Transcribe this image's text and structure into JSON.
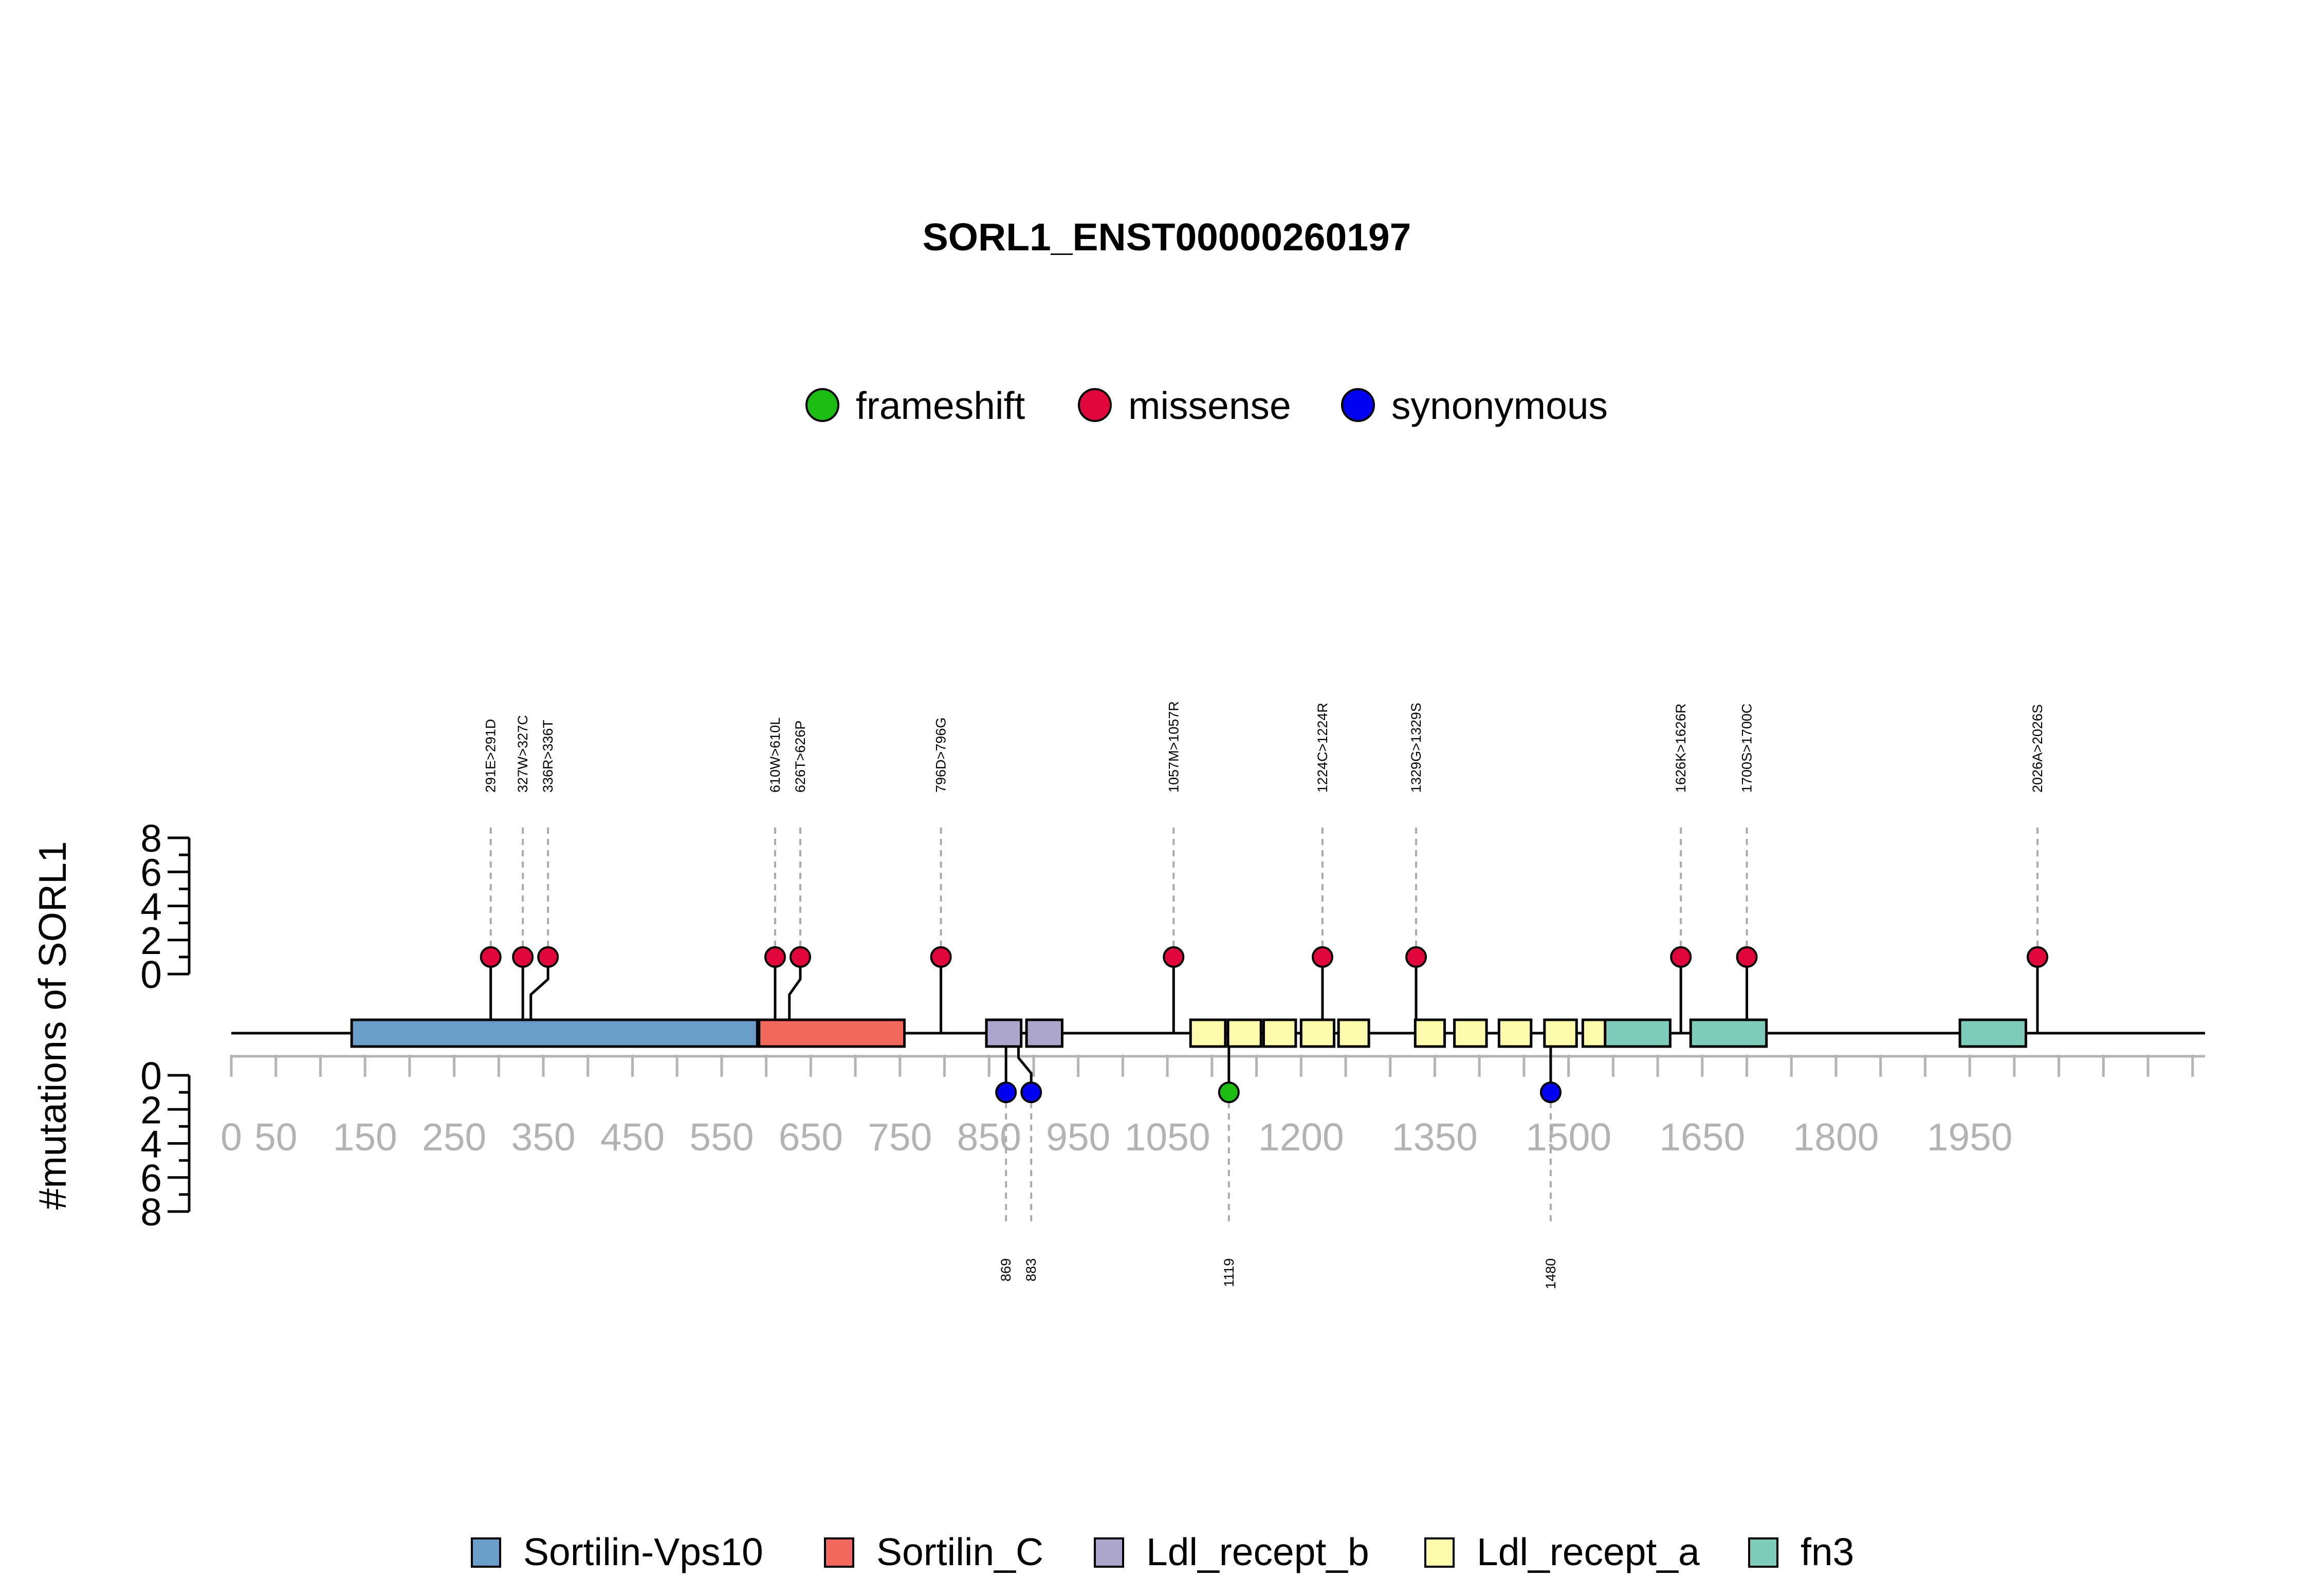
{
  "chart_data": {
    "type": "lollipop",
    "title": "SORL1_ENST00000260197",
    "ylabel": "#mutations of SORL1",
    "protein_length": 2214,
    "xticks": [
      0,
      50,
      150,
      250,
      350,
      450,
      550,
      650,
      750,
      850,
      950,
      1050,
      1200,
      1350,
      1500,
      1650,
      1800,
      1950
    ],
    "yticks_top": [
      0,
      2,
      4,
      6,
      8
    ],
    "yticks_bottom": [
      0,
      2,
      4,
      6,
      8
    ],
    "ylim": [
      0,
      8
    ],
    "legend_mutations": [
      {
        "name": "frameshift",
        "color": "#1bbd12"
      },
      {
        "name": "missense",
        "color": "#e0063c"
      },
      {
        "name": "synonymous",
        "color": "#0000f2"
      }
    ],
    "legend_domains": [
      {
        "name": "Sortilin-Vps10",
        "color": "#6a9ec9"
      },
      {
        "name": "Sortilin_C",
        "color": "#f4695e"
      },
      {
        "name": "Ldl_recept_b",
        "color": "#aca5cc"
      },
      {
        "name": "Ldl_recept_a",
        "color": "#fdfbac"
      },
      {
        "name": "fn3",
        "color": "#7ecdbb"
      }
    ],
    "domains": [
      {
        "name": "Sortilin-Vps10",
        "start": 135,
        "end": 590
      },
      {
        "name": "Sortilin_C",
        "start": 592,
        "end": 755
      },
      {
        "name": "Ldl_recept_b",
        "start": 847,
        "end": 886
      },
      {
        "name": "Ldl_recept_b",
        "start": 892,
        "end": 932
      },
      {
        "name": "Ldl_recept_a",
        "start": 1076,
        "end": 1115
      },
      {
        "name": "Ldl_recept_a",
        "start": 1118,
        "end": 1155
      },
      {
        "name": "Ldl_recept_a",
        "start": 1158,
        "end": 1194
      },
      {
        "name": "Ldl_recept_a",
        "start": 1200,
        "end": 1237
      },
      {
        "name": "Ldl_recept_a",
        "start": 1242,
        "end": 1276
      },
      {
        "name": "Ldl_recept_a",
        "start": 1328,
        "end": 1361
      },
      {
        "name": "Ldl_recept_a",
        "start": 1372,
        "end": 1408
      },
      {
        "name": "Ldl_recept_a",
        "start": 1422,
        "end": 1458
      },
      {
        "name": "Ldl_recept_a",
        "start": 1473,
        "end": 1509
      },
      {
        "name": "Ldl_recept_a",
        "start": 1516,
        "end": 1552
      },
      {
        "name": "fn3",
        "start": 1541,
        "end": 1614
      },
      {
        "name": "fn3",
        "start": 1637,
        "end": 1722
      },
      {
        "name": "fn3",
        "start": 1939,
        "end": 2013
      }
    ],
    "mutations_top": [
      {
        "pos": 291,
        "label": "291E>291D",
        "type": "missense",
        "count": 1
      },
      {
        "pos": 327,
        "label": "327W>327C",
        "type": "missense",
        "count": 1
      },
      {
        "pos": 336,
        "label": "336R>336T",
        "type": "missense",
        "count": 1
      },
      {
        "pos": 610,
        "label": "610W>610L",
        "type": "missense",
        "count": 1
      },
      {
        "pos": 626,
        "label": "626T>626P",
        "type": "missense",
        "count": 1
      },
      {
        "pos": 796,
        "label": "796D>796G",
        "type": "missense",
        "count": 1
      },
      {
        "pos": 1057,
        "label": "1057M>1057R",
        "type": "missense",
        "count": 1
      },
      {
        "pos": 1224,
        "label": "1224C>1224R",
        "type": "missense",
        "count": 1
      },
      {
        "pos": 1329,
        "label": "1329G>1329S",
        "type": "missense",
        "count": 1
      },
      {
        "pos": 1626,
        "label": "1626K>1626R",
        "type": "missense",
        "count": 1
      },
      {
        "pos": 1700,
        "label": "1700S>1700C",
        "type": "missense",
        "count": 1
      },
      {
        "pos": 2026,
        "label": "2026A>2026S",
        "type": "missense",
        "count": 1
      }
    ],
    "mutations_bottom": [
      {
        "pos": 869,
        "label": "869",
        "type": "synonymous",
        "count": 1
      },
      {
        "pos": 883,
        "label": "883",
        "type": "synonymous",
        "count": 1
      },
      {
        "pos": 1119,
        "label": "1119",
        "type": "frameshift",
        "count": 1
      },
      {
        "pos": 1480,
        "label": "1480",
        "type": "synonymous",
        "count": 1
      }
    ]
  }
}
